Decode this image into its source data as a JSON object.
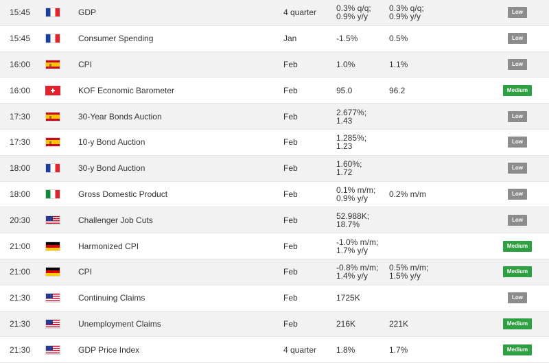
{
  "rows": [
    {
      "time": "15:45",
      "country_icon": "flag-france-icon",
      "flag": "fr",
      "event": "GDP",
      "period": "4 quarter",
      "actual": "0.3% q/q;\n0.9% y/y",
      "forecast": "0.3% q/q;\n0.9% y/y",
      "impact": "Low"
    },
    {
      "time": "15:45",
      "country_icon": "flag-france-icon",
      "flag": "fr",
      "event": "Consumer Spending",
      "period": "Jan",
      "actual": "-1.5%",
      "forecast": "0.5%",
      "impact": "Low"
    },
    {
      "time": "16:00",
      "country_icon": "flag-spain-icon",
      "flag": "es",
      "event": "CPI",
      "period": "Feb",
      "actual": "1.0%",
      "forecast": "1.1%",
      "impact": "Low"
    },
    {
      "time": "16:00",
      "country_icon": "flag-switzerland-icon",
      "flag": "ch",
      "event": "KOF Economic Barometer",
      "period": "Feb",
      "actual": "95.0",
      "forecast": "96.2",
      "impact": "Medium"
    },
    {
      "time": "17:30",
      "country_icon": "flag-spain-icon",
      "flag": "es",
      "event": "30-Year Bonds Auction",
      "period": "Feb",
      "actual": "2.677%;\n1.43",
      "forecast": "",
      "impact": "Low"
    },
    {
      "time": "17:30",
      "country_icon": "flag-spain-icon",
      "flag": "es",
      "event": "10-y Bond Auction",
      "period": "Feb",
      "actual": "1.285%;\n1.23",
      "forecast": "",
      "impact": "Low"
    },
    {
      "time": "18:00",
      "country_icon": "flag-france-icon",
      "flag": "fr",
      "event": "30-y Bond Auction",
      "period": "Feb",
      "actual": "1.60%;\n1.72",
      "forecast": "",
      "impact": "Low"
    },
    {
      "time": "18:00",
      "country_icon": "flag-italy-icon",
      "flag": "it",
      "event": "Gross Domestic Product",
      "period": "Feb",
      "actual": "0.1% m/m;\n0.9% y/y",
      "forecast": "0.2% m/m",
      "impact": "Low"
    },
    {
      "time": "20:30",
      "country_icon": "flag-usa-icon",
      "flag": "us",
      "event": "Challenger Job Cuts",
      "period": "Feb",
      "actual": "52.988K;\n18.7%",
      "forecast": "",
      "impact": "Low"
    },
    {
      "time": "21:00",
      "country_icon": "flag-germany-icon",
      "flag": "de",
      "event": "Harmonized CPI",
      "period": "Feb",
      "actual": "-1.0% m/m;\n1.7% y/y",
      "forecast": "",
      "impact": "Medium"
    },
    {
      "time": "21:00",
      "country_icon": "flag-germany-icon",
      "flag": "de",
      "event": "CPI",
      "period": "Feb",
      "actual": "-0.8% m/m;\n1.4% y/y",
      "forecast": "0.5% m/m;\n1.5% y/y",
      "impact": "Medium"
    },
    {
      "time": "21:30",
      "country_icon": "flag-usa-icon",
      "flag": "us",
      "event": "Continuing Claims",
      "period": "Feb",
      "actual": "1725K",
      "forecast": "",
      "impact": "Low"
    },
    {
      "time": "21:30",
      "country_icon": "flag-usa-icon",
      "flag": "us",
      "event": "Unemployment Claims",
      "period": "Feb",
      "actual": "216K",
      "forecast": "221K",
      "impact": "Medium"
    },
    {
      "time": "21:30",
      "country_icon": "flag-usa-icon",
      "flag": "us",
      "event": "GDP Price Index",
      "period": "4 quarter",
      "actual": "1.8%",
      "forecast": "1.7%",
      "impact": "Medium"
    }
  ],
  "colors": {
    "low_badge": "#8c8c8c",
    "medium_badge": "#2ea043",
    "row_alt": "#f2f2f2"
  }
}
